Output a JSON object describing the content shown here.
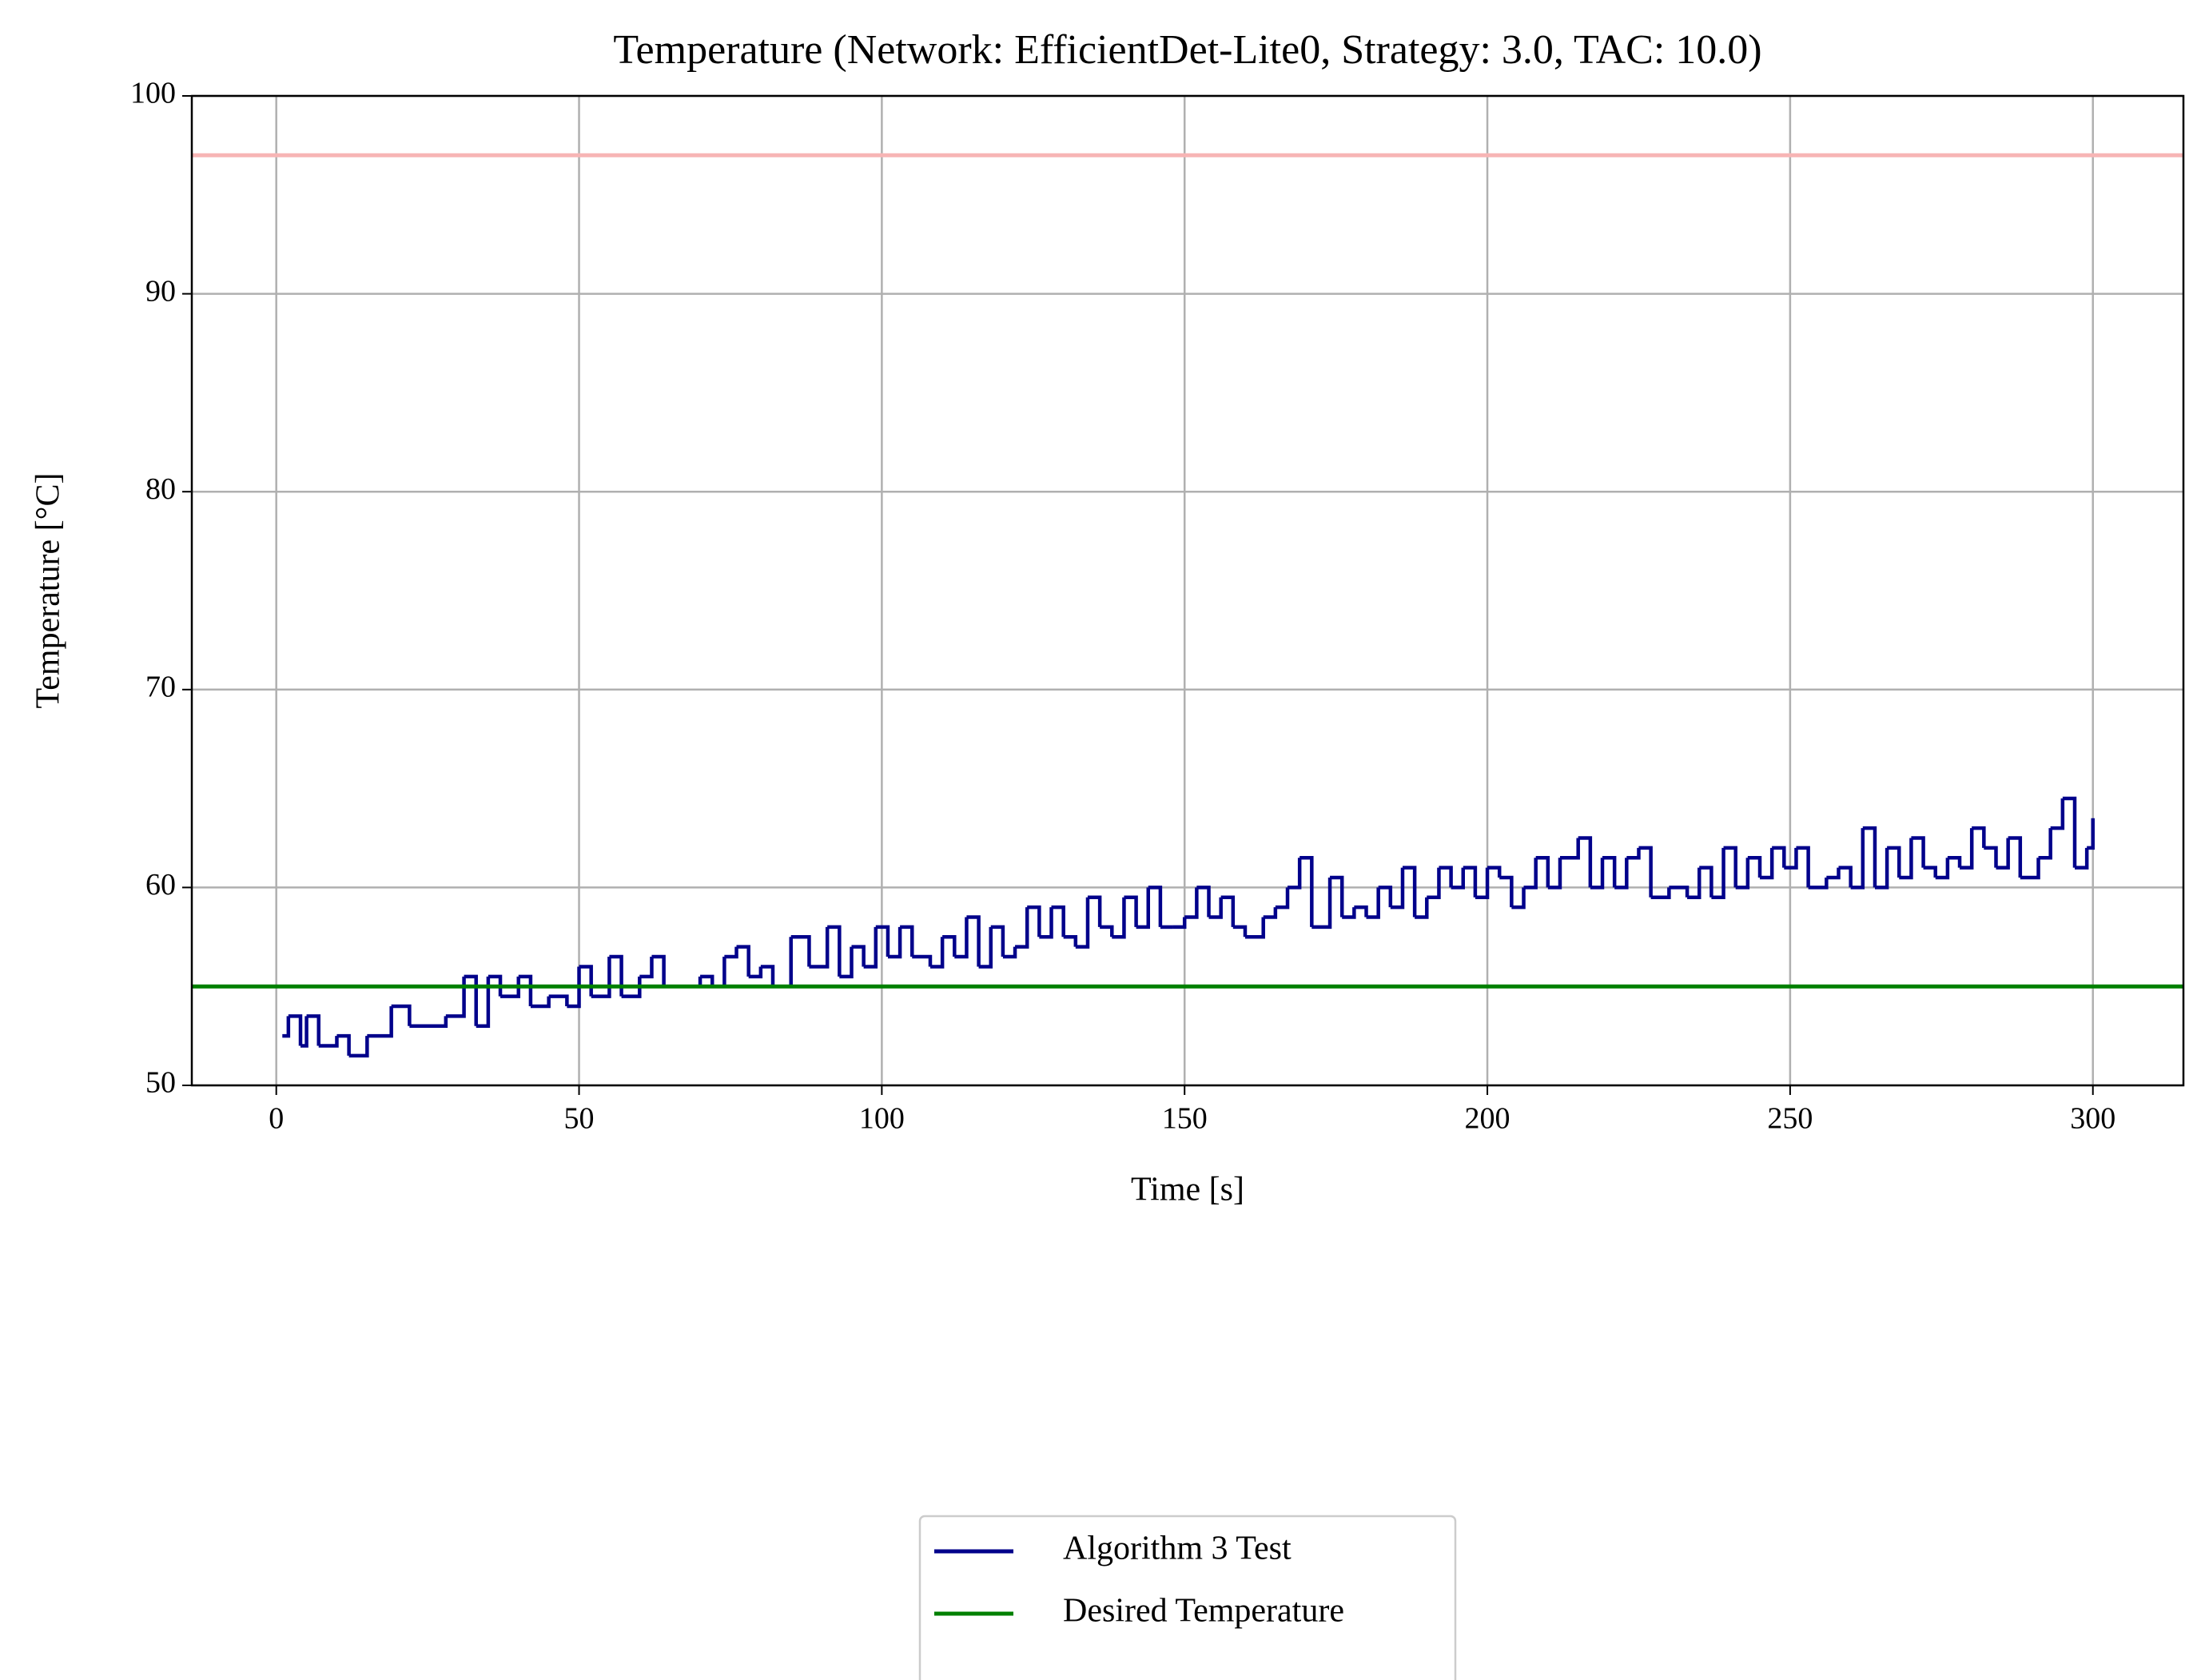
{
  "chart_data": {
    "type": "step",
    "title": "Temperature (Network: EfficientDet-Lite0, Strategy: 3.0, TAC: 10.0)",
    "x_label": "Time [s]",
    "y_label": "Temperature [°C]",
    "xlim": [
      -13.95,
      314.95
    ],
    "ylim": [
      50,
      100
    ],
    "xticks": [
      0,
      50,
      100,
      150,
      200,
      250,
      300
    ],
    "yticks": [
      50,
      60,
      70,
      80,
      90,
      100
    ],
    "grid": true,
    "legend": "below",
    "series": [
      {
        "name": "Algorithm 3 Test",
        "color": "#00008b",
        "x": [
          1,
          2,
          4,
          5,
          7,
          10,
          12,
          15,
          19,
          22,
          28,
          31,
          33,
          35,
          37,
          40,
          42,
          45,
          48,
          50,
          52,
          55,
          57,
          60,
          62,
          64,
          67,
          70,
          72,
          74,
          76,
          78,
          80,
          82,
          85,
          88,
          91,
          93,
          95,
          97,
          99,
          101,
          103,
          105,
          108,
          110,
          112,
          114,
          116,
          118,
          120,
          122,
          124,
          126,
          128,
          130,
          132,
          134,
          136,
          138,
          140,
          142,
          144,
          146,
          148,
          150,
          152,
          154,
          156,
          158,
          160,
          163,
          165,
          167,
          169,
          171,
          174,
          176,
          178,
          180,
          182,
          184,
          186,
          188,
          190,
          192,
          194,
          196,
          198,
          200,
          202,
          204,
          206,
          208,
          210,
          212,
          215,
          217,
          219,
          221,
          223,
          225,
          227,
          230,
          233,
          235,
          237,
          239,
          241,
          243,
          245,
          247,
          249,
          251,
          253,
          256,
          258,
          260,
          262,
          264,
          266,
          268,
          270,
          272,
          274,
          276,
          278,
          280,
          282,
          284,
          286,
          288,
          291,
          293,
          295,
          297,
          299,
          300
        ],
        "values": [
          52.5,
          53.5,
          52,
          53.5,
          52,
          52.5,
          51.5,
          52.5,
          54,
          53,
          53.5,
          55.5,
          53,
          55.5,
          54.5,
          55.5,
          54,
          54.5,
          54,
          56,
          54.5,
          56.5,
          54.5,
          55.5,
          56.5,
          55,
          55,
          55.5,
          55,
          56.5,
          57,
          55.5,
          56,
          55,
          57.5,
          56,
          58,
          55.5,
          57,
          56,
          58,
          56.5,
          58,
          56.5,
          56,
          57.5,
          56.5,
          58.5,
          56,
          58,
          56.5,
          57,
          59,
          57.5,
          59,
          57.5,
          57,
          59.5,
          58,
          57.5,
          59.5,
          58,
          60,
          58,
          58,
          58.5,
          60,
          58.5,
          59.5,
          58,
          57.5,
          58.5,
          59,
          60,
          61.5,
          58,
          60.5,
          58.5,
          59,
          58.5,
          60,
          59,
          61,
          58.5,
          59.5,
          61,
          60,
          61,
          59.5,
          61,
          60.5,
          59,
          60,
          61.5,
          60,
          61.5,
          62.5,
          60,
          61.5,
          60,
          61.5,
          62,
          59.5,
          60,
          59.5,
          61,
          59.5,
          62,
          60,
          61.5,
          60.5,
          62,
          61,
          62,
          60,
          60.5,
          61,
          60,
          63,
          60,
          62,
          60.5,
          62.5,
          61,
          60.5,
          61.5,
          61,
          63,
          62,
          61,
          62.5,
          60.5,
          61.5,
          63,
          64.5,
          61,
          62,
          63.5
        ]
      },
      {
        "name": "Desired Temperature",
        "color": "#008000",
        "hline": 55
      }
    ],
    "limit_line": {
      "value": 97,
      "color": "#f7b5b5"
    }
  }
}
